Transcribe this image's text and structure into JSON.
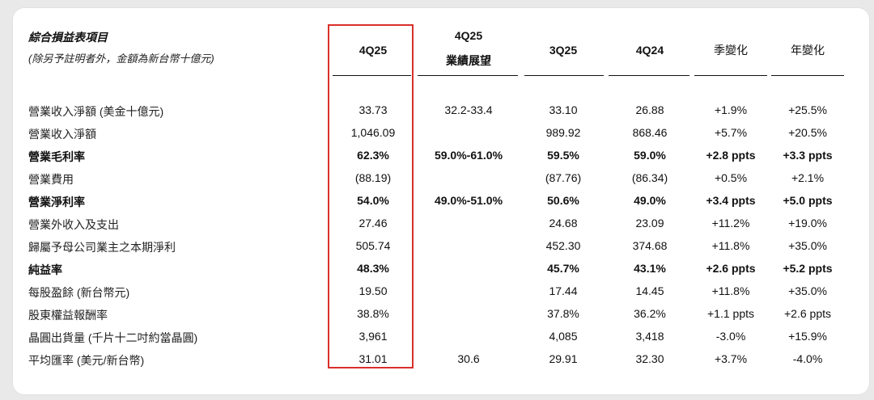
{
  "header": {
    "title": "綜合損益表項目",
    "subtitle": "(除另予註明者外，金額為新台幣十億元)",
    "columns": [
      {
        "line1": "4Q25",
        "line2": ""
      },
      {
        "line1": "4Q25",
        "line2": "業績展望"
      },
      {
        "line1": "3Q25",
        "line2": ""
      },
      {
        "line1": "4Q24",
        "line2": ""
      },
      {
        "line1": "季變化",
        "line2": ""
      },
      {
        "line1": "年變化",
        "line2": ""
      }
    ]
  },
  "rows": [
    {
      "label": "營業收入淨額 (美金十億元)",
      "bold": false,
      "values": [
        "33.73",
        "32.2-33.4",
        "33.10",
        "26.88",
        "+1.9%",
        "+25.5%"
      ]
    },
    {
      "label": "營業收入淨額",
      "bold": false,
      "values": [
        "1,046.09",
        "",
        "989.92",
        "868.46",
        "+5.7%",
        "+20.5%"
      ]
    },
    {
      "label": "營業毛利率",
      "bold": true,
      "values": [
        "62.3%",
        "59.0%-61.0%",
        "59.5%",
        "59.0%",
        "+2.8 ppts",
        "+3.3 ppts"
      ]
    },
    {
      "label": "營業費用",
      "bold": false,
      "values": [
        "(88.19)",
        "",
        "(87.76)",
        "(86.34)",
        "+0.5%",
        "+2.1%"
      ]
    },
    {
      "label": "營業淨利率",
      "bold": true,
      "values": [
        "54.0%",
        "49.0%-51.0%",
        "50.6%",
        "49.0%",
        "+3.4 ppts",
        "+5.0 ppts"
      ]
    },
    {
      "label": "營業外收入及支出",
      "bold": false,
      "values": [
        "27.46",
        "",
        "24.68",
        "23.09",
        "+11.2%",
        "+19.0%"
      ]
    },
    {
      "label": "歸屬予母公司業主之本期淨利",
      "bold": false,
      "values": [
        "505.74",
        "",
        "452.30",
        "374.68",
        "+11.8%",
        "+35.0%"
      ]
    },
    {
      "label": "純益率",
      "bold": true,
      "values": [
        "48.3%",
        "",
        "45.7%",
        "43.1%",
        "+2.6 ppts",
        "+5.2 ppts"
      ]
    },
    {
      "label": "每股盈餘 (新台幣元)",
      "bold": false,
      "values": [
        "19.50",
        "",
        "17.44",
        "14.45",
        "+11.8%",
        "+35.0%"
      ]
    },
    {
      "label": "股東權益報酬率",
      "bold": false,
      "values": [
        "38.8%",
        "",
        "37.8%",
        "36.2%",
        "+1.1 ppts",
        "+2.6 ppts"
      ]
    },
    {
      "label": "晶圓出貨量 (千片十二吋約當晶圓)",
      "bold": false,
      "values": [
        "3,961",
        "",
        "4,085",
        "3,418",
        "-3.0%",
        "+15.9%"
      ]
    },
    {
      "label": "平均匯率 (美元/新台幣)",
      "bold": false,
      "values": [
        "31.01",
        "30.6",
        "29.91",
        "32.30",
        "+3.7%",
        "-4.0%"
      ]
    }
  ],
  "highlight_color": "#d9302a"
}
